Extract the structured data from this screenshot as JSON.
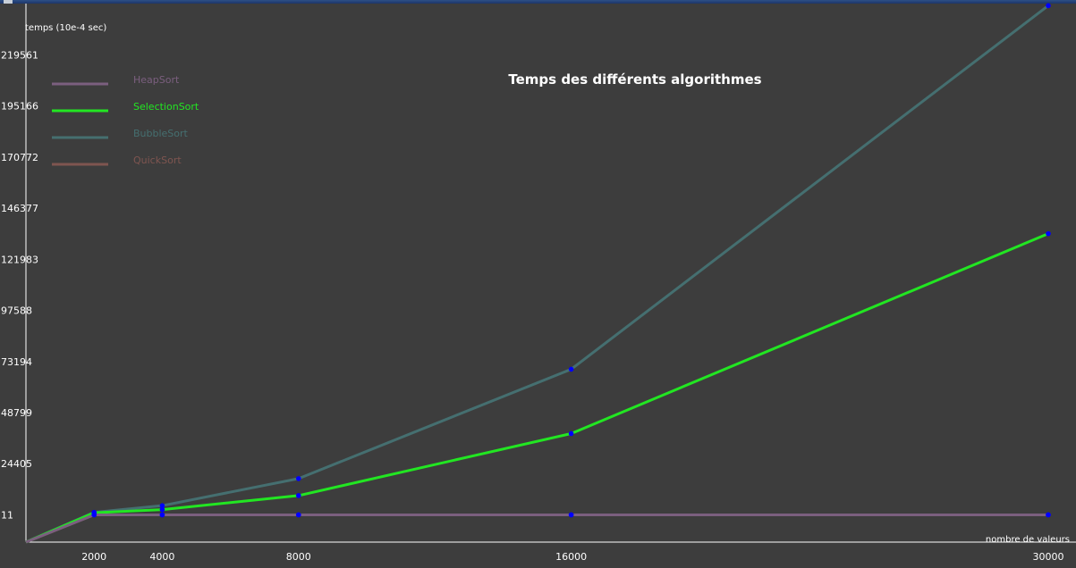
{
  "window": {
    "titlebar_color": "#2d4f86"
  },
  "chart_data": {
    "type": "line",
    "title": "Temps des différents algorithmes",
    "xlabel": "nombre de valeurs",
    "ylabel": "temps (10e-4 sec)",
    "x_ticks": [
      2000,
      4000,
      8000,
      16000,
      30000
    ],
    "y_ticks": [
      "11",
      "24405",
      "48799",
      "73194",
      "97588",
      "121983",
      "146377",
      "170772",
      "195166",
      "219561"
    ],
    "xlim": [
      0,
      30000
    ],
    "ylim": [
      -13000,
      244000
    ],
    "x": [
      0,
      2000,
      4000,
      8000,
      16000,
      30000
    ],
    "grid": false,
    "legend_position": "top-left",
    "point_color": "#0000ff",
    "background": "#3d3d3d",
    "series": [
      {
        "name": "HeapSort",
        "color": "#7b5f7f",
        "width": 3,
        "values": [
          -13000,
          11,
          11,
          11,
          11,
          11
        ]
      },
      {
        "name": "SelectionSort",
        "color": "#22e622",
        "width": 3,
        "values": [
          -13000,
          1000,
          2500,
          9200,
          38800,
          134200
        ]
      },
      {
        "name": "BubbleSort",
        "color": "#456f70",
        "width": 3,
        "values": [
          -13000,
          1200,
          4400,
          17300,
          69500,
          243000
        ]
      },
      {
        "name": "QuickSort",
        "color": "#7f5550",
        "width": 3,
        "values": [
          -13000,
          11,
          11,
          11,
          11,
          11
        ]
      }
    ]
  }
}
